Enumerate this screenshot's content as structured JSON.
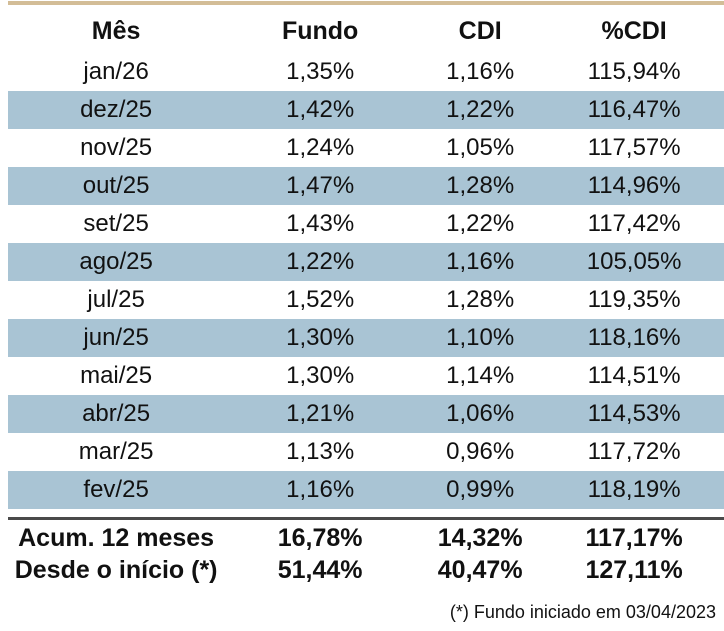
{
  "chart_data": {
    "type": "table",
    "columns": [
      "Mês",
      "Fundo",
      "CDI",
      "%CDI"
    ],
    "rows": [
      [
        "jan/26",
        "1,35%",
        "1,16%",
        "115,94%"
      ],
      [
        "dez/25",
        "1,42%",
        "1,22%",
        "116,47%"
      ],
      [
        "nov/25",
        "1,24%",
        "1,05%",
        "117,57%"
      ],
      [
        "out/25",
        "1,47%",
        "1,28%",
        "114,96%"
      ],
      [
        "set/25",
        "1,43%",
        "1,22%",
        "117,42%"
      ],
      [
        "ago/25",
        "1,22%",
        "1,16%",
        "105,05%"
      ],
      [
        "jul/25",
        "1,52%",
        "1,28%",
        "119,35%"
      ],
      [
        "jun/25",
        "1,30%",
        "1,10%",
        "118,16%"
      ],
      [
        "mai/25",
        "1,30%",
        "1,14%",
        "114,51%"
      ],
      [
        "abr/25",
        "1,21%",
        "1,06%",
        "114,53%"
      ],
      [
        "mar/25",
        "1,13%",
        "0,96%",
        "117,72%"
      ],
      [
        "fev/25",
        "1,16%",
        "0,99%",
        "118,19%"
      ]
    ],
    "summary_rows": [
      [
        "Acum. 12 meses",
        "16,78%",
        "14,32%",
        "117,17%"
      ],
      [
        "Desde o início (*)",
        "51,44%",
        "40,47%",
        "127,11%"
      ]
    ],
    "footnote": "(*) Fundo iniciado em 03/04/2023",
    "layout": {
      "stripe_pattern": "even rows shaded, starting with second data row",
      "alignment": "all columns centered"
    }
  },
  "colors": {
    "row_stripe": "#a9c4d4",
    "top_border": "#d3bd97",
    "summary_divider": "#4a4a4a",
    "text": "#111111"
  }
}
